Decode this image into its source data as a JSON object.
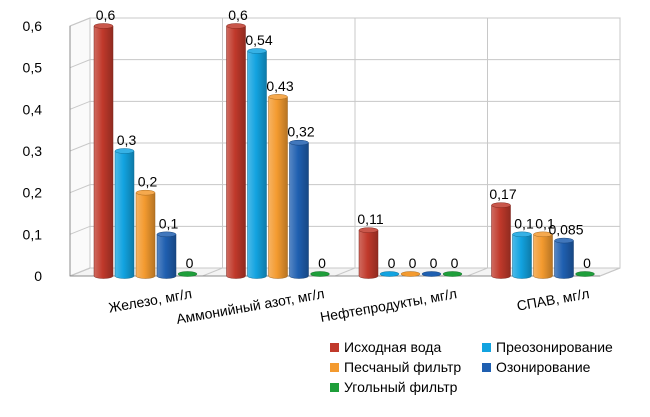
{
  "chart_data": {
    "type": "bar",
    "title": "",
    "xlabel": "",
    "ylabel": "",
    "ylim": [
      0,
      0.6
    ],
    "yticks": [
      "0",
      "0,1",
      "0,2",
      "0,3",
      "0,4",
      "0,5",
      "0,6"
    ],
    "grid": true,
    "legend_position": "bottom-right",
    "categories": [
      "Железо, мг/л",
      "Аммонийный азот, мг/л",
      "Нефтепродукты, мг/л",
      "СПАВ, мг/л"
    ],
    "series": [
      {
        "name": "Исходная вода",
        "color": "#c0392b",
        "values": [
          0.6,
          0.6,
          0.11,
          0.17
        ],
        "labels": [
          "0,6",
          "0,6",
          "0,11",
          "0,17"
        ]
      },
      {
        "name": "Преозонирование",
        "color": "#12a3e0",
        "values": [
          0.3,
          0.54,
          0,
          0.1
        ],
        "labels": [
          "0,3",
          "0,54",
          "0",
          "0,1"
        ]
      },
      {
        "name": "Песчаный фильтр",
        "color": "#f39a2f",
        "values": [
          0.2,
          0.43,
          0,
          0.1
        ],
        "labels": [
          "0,2",
          "0,43",
          "0",
          "0,1"
        ]
      },
      {
        "name": "Озонирование",
        "color": "#1f5fb0",
        "values": [
          0.1,
          0.32,
          0,
          0.085
        ],
        "labels": [
          "0,1",
          "0,32",
          "0",
          "0,085"
        ]
      },
      {
        "name": "Угольный фильтр",
        "color": "#1e9e3a",
        "values": [
          0,
          0,
          0,
          0
        ],
        "labels": [
          "0",
          "0",
          "0",
          "0"
        ]
      }
    ]
  }
}
